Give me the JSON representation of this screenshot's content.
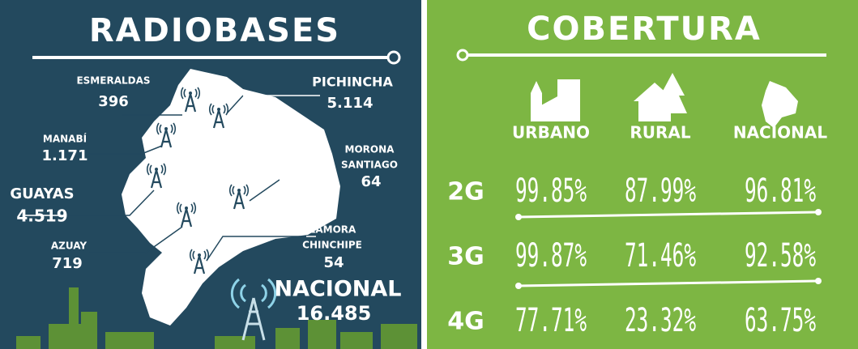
{
  "radiobases": {
    "title": "RADIOBASES",
    "provinces": [
      {
        "name": [
          "ESMERALDAS"
        ],
        "value": "396"
      },
      {
        "name": [
          "PICHINCHA"
        ],
        "value": "5.114"
      },
      {
        "name": [
          "MANABÍ"
        ],
        "value": "1.171"
      },
      {
        "name": [
          "MORONA",
          "SANTIAGO"
        ],
        "value": "64"
      },
      {
        "name": [
          "GUAYAS"
        ],
        "value": "4.519"
      },
      {
        "name": [
          "AZUAY"
        ],
        "value": "719"
      },
      {
        "name": [
          "ZAMORA",
          "CHINCHIPE"
        ],
        "value": "54"
      }
    ],
    "national": {
      "label": "NACIONAL",
      "value": "16.485"
    }
  },
  "cobertura": {
    "title": "COBERTURA",
    "columns": [
      "URBANO",
      "RURAL",
      "NACIONAL"
    ],
    "rows": [
      {
        "label": "2G",
        "values": [
          "99.85%",
          "87.99%",
          "96.81%"
        ]
      },
      {
        "label": "3G",
        "values": [
          "99.87%",
          "71.46%",
          "92.58%"
        ]
      },
      {
        "label": "4G",
        "values": [
          "77.71%",
          "23.32%",
          "63.75%"
        ]
      }
    ]
  }
}
